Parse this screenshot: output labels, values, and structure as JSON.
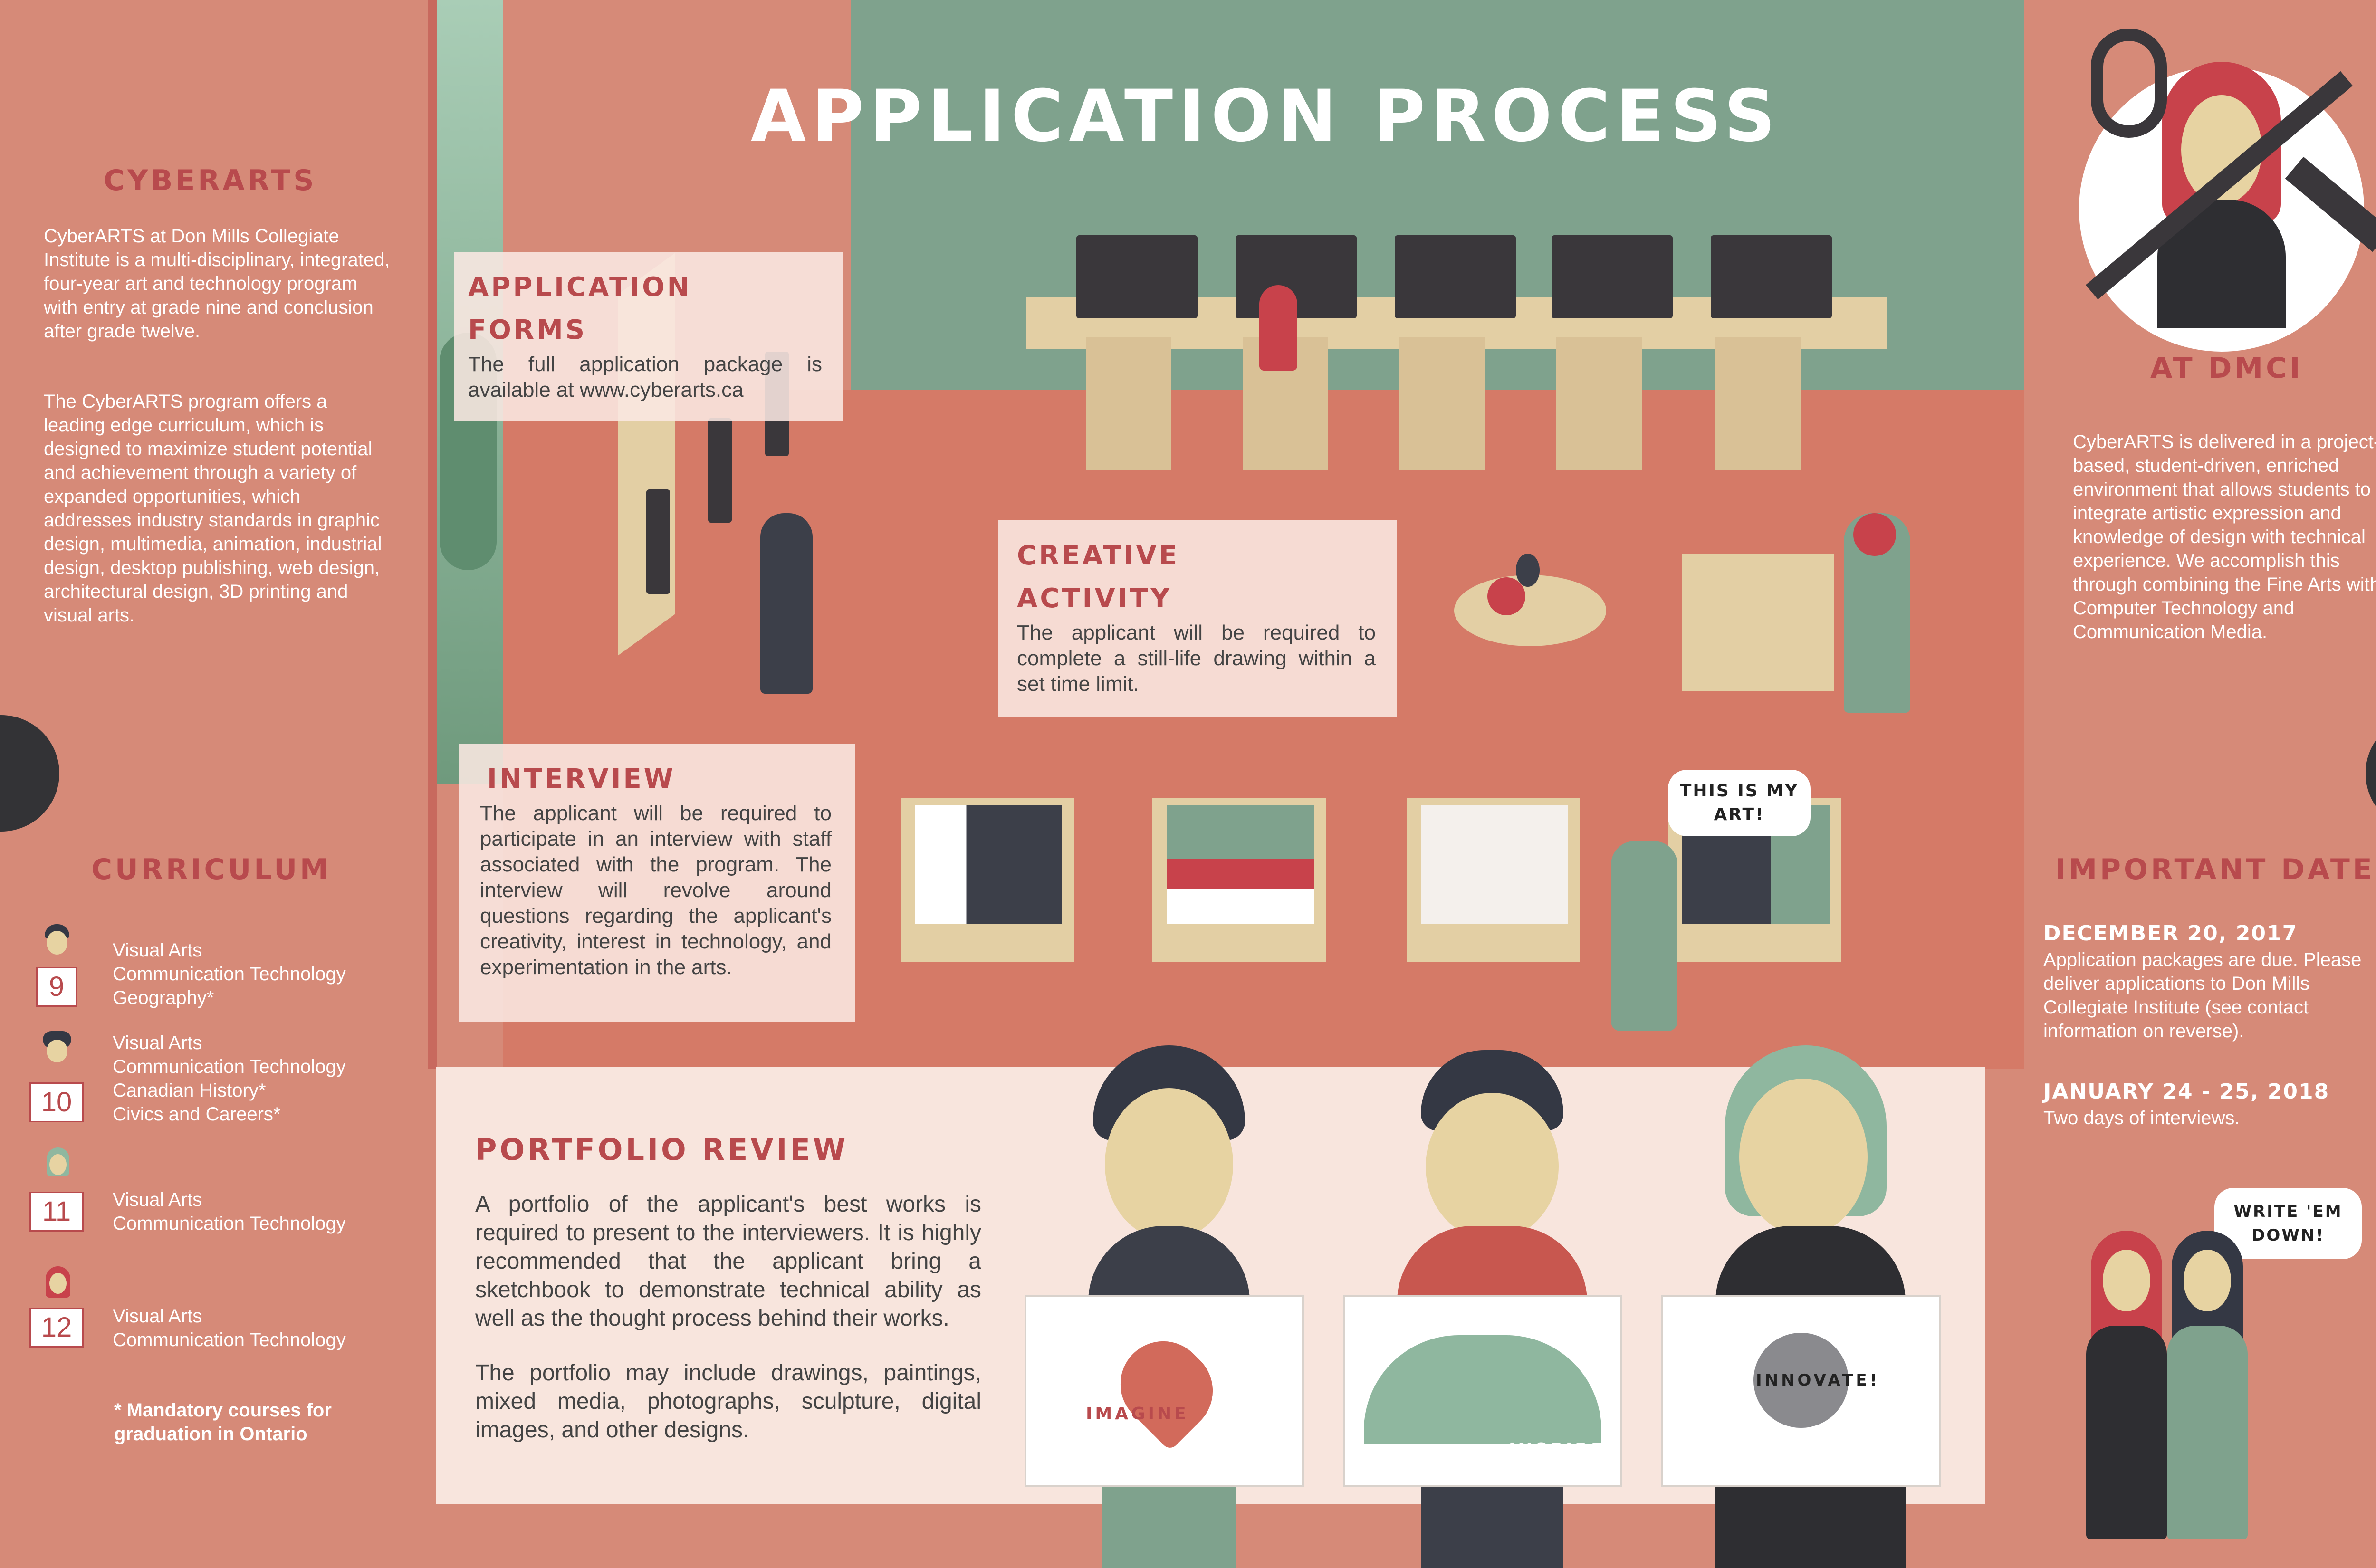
{
  "title": "APPLICATION PROCESS",
  "left": {
    "cyberarts_heading": "CYBERARTS",
    "cyberarts_p1": "CyberARTS at Don Mills Collegiate Institute is a multi-disciplinary, integrated, four-year art and technology program with entry at grade nine and conclusion after grade twelve.",
    "cyberarts_p2": "The CyberARTS program offers a leading edge curriculum, which is designed to maximize student potential and achievement through a variety of expanded opportunities, which addresses industry standards in graphic design, multimedia, animation, industrial design, desktop publishing, web design, architectural design, 3D printing and visual arts.",
    "curriculum_heading": "CURRICULUM",
    "grades": [
      {
        "number": "9",
        "courses": [
          "Visual Arts",
          "Communication Technology",
          "Geography*"
        ]
      },
      {
        "number": "10",
        "courses": [
          "Visual Arts",
          "Communication Technology",
          "Canadian History*",
          "Civics and Careers*"
        ]
      },
      {
        "number": "11",
        "courses": [
          "Visual Arts",
          "Communication Technology"
        ]
      },
      {
        "number": "12",
        "courses": [
          "Visual Arts",
          "Communication Technology"
        ]
      }
    ],
    "mandatory_note": "* Mandatory courses for graduation in Ontario"
  },
  "cards": {
    "forms": {
      "title_line1": "APPLICATION",
      "title_line2": "FORMS",
      "body": "The full application package is available at www.cyberarts.ca"
    },
    "creative": {
      "title_line1": "CREATIVE",
      "title_line2": "ACTIVITY",
      "body": "The applicant will be required to complete a still-life drawing within a set time limit."
    },
    "interview": {
      "title": "INTERVIEW",
      "body": "The applicant will be required to participate in an interview with staff associated with the program. The interview will revolve around questions regarding the applicant's creativity, interest in technology, and experimentation in the arts."
    },
    "portfolio": {
      "title": "PORTFOLIO REVIEW",
      "body1": "A portfolio of the applicant's best works is required to present to the interviewers. It is highly recommended that the applicant bring a sketchbook to demonstrate technical ability as well as the thought process behind their works.",
      "body2": "The portfolio may include drawings, paintings, mixed media, photographs, sculpture, digital images, and other designs."
    }
  },
  "speech": {
    "art": "THIS IS MY ART!",
    "write": "WRITE 'EM DOWN!"
  },
  "signs": {
    "imagine": "IMAGINE",
    "inspire": "INSPIRE",
    "innovate": "INNOVATE!"
  },
  "right": {
    "dmci_heading": "AT DMCI",
    "dmci_body": "CyberARTS is delivered in a project-based, student-driven, enriched environment that allows students to integrate artistic expression and knowledge of design with technical experience. We accomplish this through combining the Fine Arts with Computer Technology and Communication Media.",
    "dates_heading": "IMPORTANT DATES",
    "dates": [
      {
        "date": "DECEMBER 20, 2017",
        "desc": "Application packages are due. Please deliver applications to Don Mills Collegiate Institute (see contact information on reverse)."
      },
      {
        "date": "JANUARY 24 - 25, 2018",
        "desc": "Two days of interviews."
      }
    ]
  },
  "colors": {
    "background": "#d68a78",
    "green": "#7fa28d",
    "accent_red": "#b84a4d",
    "card": "#fae8e2"
  },
  "icons": [
    "paintbrush-icon",
    "usb-cable-icon",
    "stylus-icon"
  ]
}
